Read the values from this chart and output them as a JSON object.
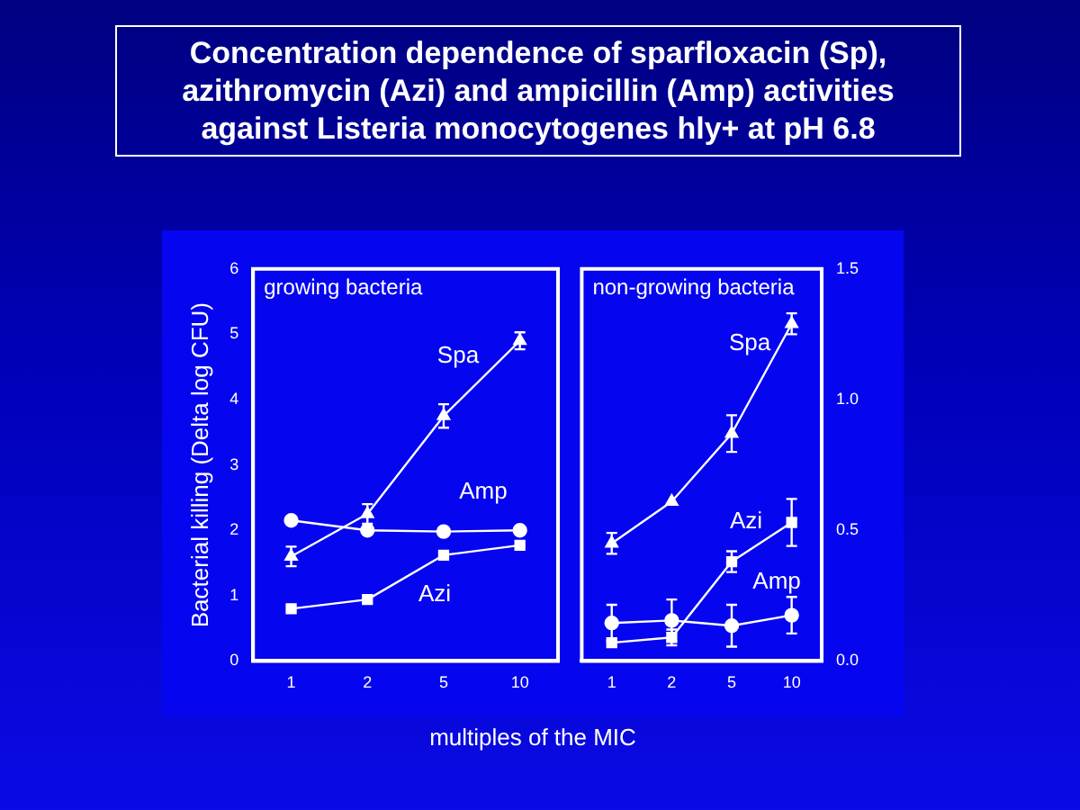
{
  "chart_data": [
    {
      "type": "line",
      "title": "Concentration dependence of sparfloxacin (Sp), azithromycin (Azi) and ampicillin (Amp) activities against Listeria monocytogenes hly+ at pH 6.8",
      "xlabel": "multiples of the MIC",
      "ylabel": "Bacterial killing (Delta log CFU)",
      "annotations": [
        "growing bacteria"
      ],
      "categories": [
        "1",
        "2",
        "5",
        "10"
      ],
      "ylim": [
        0,
        6
      ],
      "yticks": [
        0,
        1,
        2,
        3,
        4,
        5,
        6
      ],
      "grid": false,
      "legend": false,
      "line_style": "solid",
      "series": [
        {
          "name": "Spa",
          "color": "#ffffff",
          "marker": "triangle",
          "values": [
            1.6,
            2.25,
            3.75,
            4.9
          ],
          "errors": [
            0.15,
            0.15,
            0.18,
            0.13
          ]
        },
        {
          "name": "Amp",
          "color": "#ffffff",
          "marker": "circle",
          "values": [
            2.15,
            2.0,
            1.98,
            2.0
          ]
        },
        {
          "name": "Azi",
          "color": "#ffffff",
          "marker": "square",
          "values": [
            0.8,
            0.94,
            1.62,
            1.77
          ]
        }
      ]
    },
    {
      "type": "line",
      "annotations": [
        "non-growing bacteria"
      ],
      "categories": [
        "1",
        "2",
        "5",
        "10"
      ],
      "y2lim": [
        0,
        1.5
      ],
      "y2ticks": [
        {
          "value": 0,
          "label": "0.0"
        },
        {
          "value": 0.5,
          "label": "0.5"
        },
        {
          "value": 1,
          "label": "1.0"
        },
        {
          "value": 1.5,
          "label": "1.5"
        }
      ],
      "grid": false,
      "legend": false,
      "line_style": "solid",
      "series": [
        {
          "name": "Spa",
          "color": "#ffffff",
          "marker": "triangle",
          "axis": "y2",
          "values": [
            0.45,
            0.61,
            0.87,
            1.29
          ],
          "errors": [
            0.04,
            null,
            0.07,
            0.04
          ]
        },
        {
          "name": "Azi",
          "color": "#ffffff",
          "marker": "square",
          "axis": "y2",
          "values": [
            0.07,
            0.09,
            0.38,
            0.53
          ],
          "errors": [
            null,
            0.03,
            0.04,
            0.09
          ]
        },
        {
          "name": "Amp",
          "color": "#ffffff",
          "marker": "circle",
          "axis": "y2",
          "values": [
            0.145,
            0.155,
            0.135,
            0.175
          ],
          "errors": [
            0.07,
            0.08,
            0.08,
            0.07
          ]
        }
      ]
    }
  ]
}
